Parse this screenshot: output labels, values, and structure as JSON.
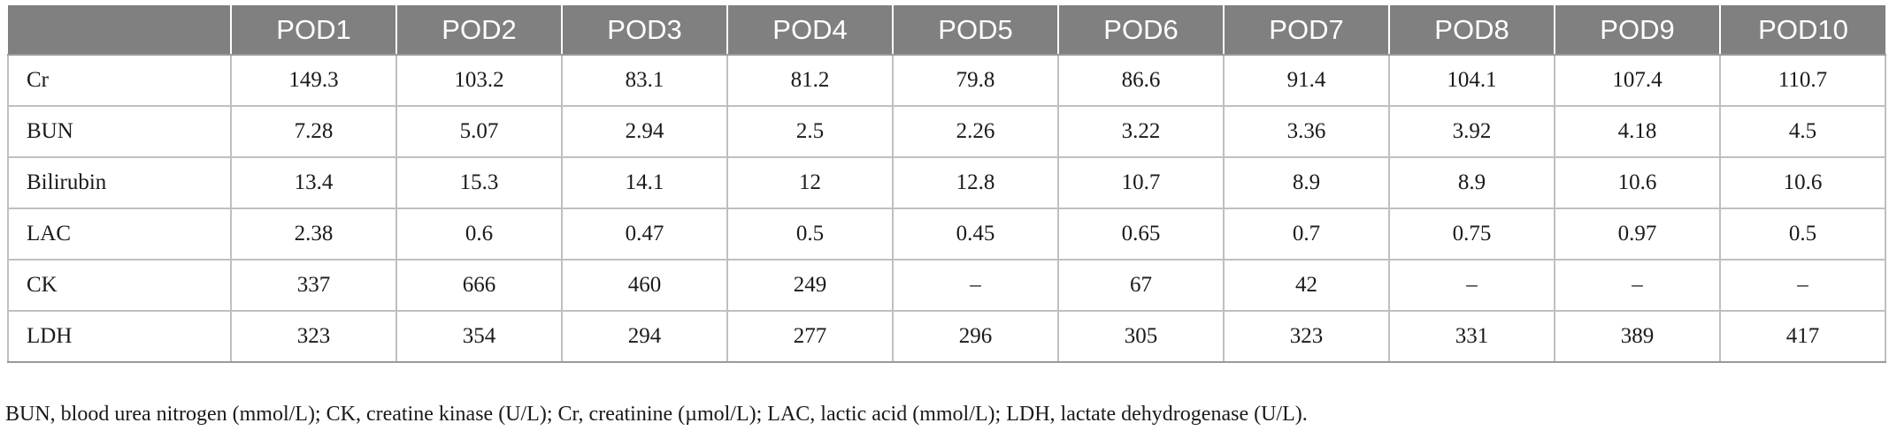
{
  "table": {
    "columns": [
      "",
      "POD1",
      "POD2",
      "POD3",
      "POD4",
      "POD5",
      "POD6",
      "POD7",
      "POD8",
      "POD9",
      "POD10"
    ],
    "rows": [
      {
        "label": "Cr",
        "values": [
          "149.3",
          "103.2",
          "83.1",
          "81.2",
          "79.8",
          "86.6",
          "91.4",
          "104.1",
          "107.4",
          "110.7"
        ]
      },
      {
        "label": "BUN",
        "values": [
          "7.28",
          "5.07",
          "2.94",
          "2.5",
          "2.26",
          "3.22",
          "3.36",
          "3.92",
          "4.18",
          "4.5"
        ]
      },
      {
        "label": "Bilirubin",
        "values": [
          "13.4",
          "15.3",
          "14.1",
          "12",
          "12.8",
          "10.7",
          "8.9",
          "8.9",
          "10.6",
          "10.6"
        ]
      },
      {
        "label": "LAC",
        "values": [
          "2.38",
          "0.6",
          "0.47",
          "0.5",
          "0.45",
          "0.65",
          "0.7",
          "0.75",
          "0.97",
          "0.5"
        ]
      },
      {
        "label": "CK",
        "values": [
          "337",
          "666",
          "460",
          "249",
          "–",
          "67",
          "42",
          "–",
          "–",
          "–"
        ]
      },
      {
        "label": "LDH",
        "values": [
          "323",
          "354",
          "294",
          "277",
          "296",
          "305",
          "323",
          "331",
          "389",
          "417"
        ]
      }
    ]
  },
  "footnote": "BUN, blood urea nitrogen (mmol/L); CK, creatine kinase (U/L); Cr, creatinine (µmol/L); LAC, lactic acid (mmol/L); LDH, lactate dehydrogenase (U/L)."
}
